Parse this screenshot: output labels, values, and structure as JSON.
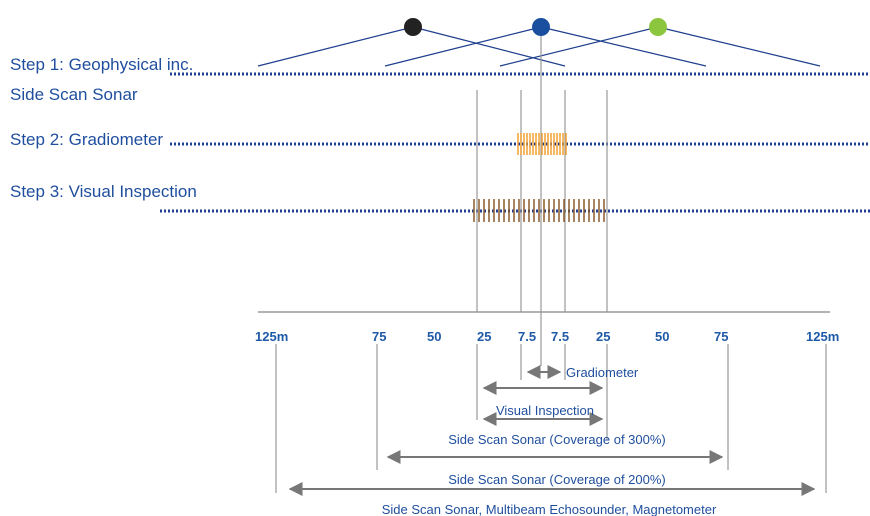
{
  "steps": {
    "step1": "Step 1: Geophysical inc.",
    "step1b": "Side Scan Sonar",
    "step2": "Step 2: Gradiometer",
    "step3": "Step 3: Visual Inspection"
  },
  "scale": {
    "left_125": "125m",
    "left_75": "75",
    "left_50": "50",
    "left_25": "25",
    "left_7_5": "7.5",
    "right_7_5": "7.5",
    "right_25": "25",
    "right_50": "50",
    "right_75": "75",
    "right_125": "125m"
  },
  "ranges": {
    "gradiometer": "Gradiometer",
    "visual_inspection": "Visual Inspection",
    "sss_300": "Side Scan Sonar (Coverage of 300%)",
    "sss_200": "Side Scan Sonar (Coverage of 200%)",
    "sss_mbes_mag": "Side Scan Sonar, Multibeam Echosounder, Magnetometer"
  },
  "colors": {
    "survey_line": "#1f3f8f",
    "label_blue": "#1f4e9e",
    "gradiometer_orange": "#f0a030",
    "visual_brown": "#8b5a2b",
    "node_black": "#222222",
    "node_blue": "#1a4fa0",
    "node_green": "#8cc63f",
    "arrow_grey": "#777777"
  }
}
